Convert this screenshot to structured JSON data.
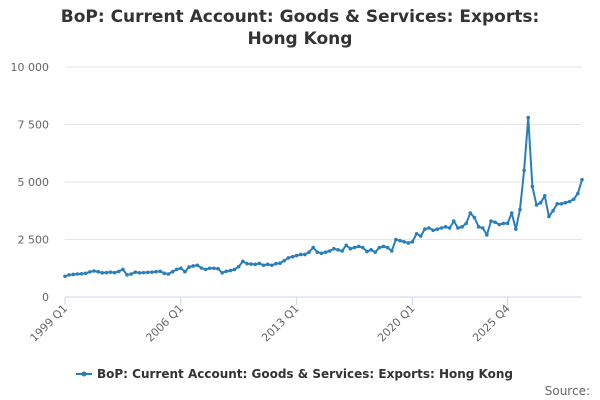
{
  "chart_data": {
    "type": "line",
    "title": "BoP: Current Account: Goods & Services: Exports: Hong Kong",
    "xlabel": "",
    "ylabel": "",
    "x_tick_labels": [
      "1999 Q1",
      "2006 Q1",
      "2013 Q1",
      "2020 Q1",
      "2025 Q4"
    ],
    "y_tick_labels": [
      "0",
      "2 500",
      "5 000",
      "7 500",
      "10 000"
    ],
    "ylim": [
      0,
      10000
    ],
    "grid": "horizontal",
    "legend_position": "bottom-center",
    "source_label": "Source:",
    "series_color": "#2b7fb8",
    "x_start": "1999 Q1",
    "series": [
      {
        "name": "BoP: Current Account: Goods & Services: Exports: Hong Kong",
        "values": [
          900,
          960,
          980,
          1000,
          1010,
          1030,
          1090,
          1130,
          1100,
          1050,
          1060,
          1080,
          1060,
          1110,
          1200,
          960,
          1000,
          1080,
          1050,
          1060,
          1070,
          1080,
          1100,
          1120,
          1030,
          1000,
          1100,
          1200,
          1250,
          1100,
          1300,
          1350,
          1380,
          1260,
          1200,
          1250,
          1250,
          1230,
          1050,
          1120,
          1150,
          1200,
          1320,
          1550,
          1450,
          1430,
          1420,
          1460,
          1380,
          1420,
          1380,
          1450,
          1470,
          1580,
          1700,
          1750,
          1800,
          1850,
          1850,
          1950,
          2150,
          1950,
          1900,
          1950,
          2000,
          2100,
          2050,
          2000,
          2250,
          2100,
          2150,
          2200,
          2150,
          1980,
          2050,
          1950,
          2150,
          2200,
          2150,
          2000,
          2500,
          2450,
          2400,
          2350,
          2400,
          2750,
          2650,
          2950,
          3000,
          2900,
          2950,
          3000,
          3050,
          3000,
          3300,
          3000,
          3050,
          3200,
          3650,
          3450,
          3050,
          3000,
          2700,
          3300,
          3250,
          3150,
          3200,
          3200,
          3650,
          2950,
          3800,
          5500,
          7800,
          4800,
          4000,
          4100,
          4400,
          3500,
          3750,
          4050,
          4050,
          4100,
          4150,
          4250,
          4500,
          5100
        ]
      }
    ]
  }
}
